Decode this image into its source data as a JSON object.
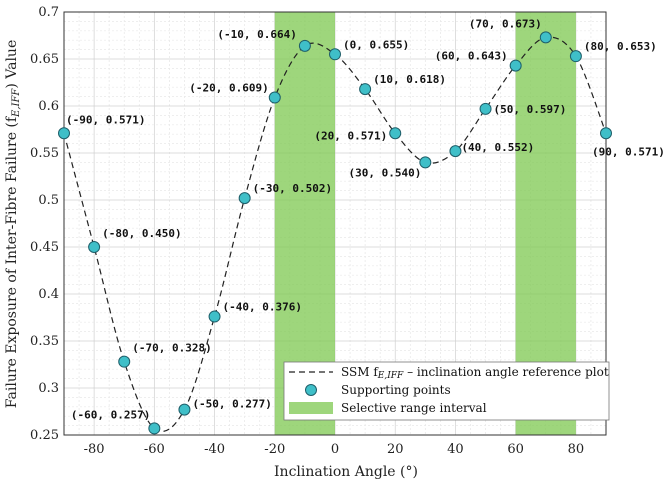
{
  "chart_data": {
    "type": "line",
    "xlabel": "Inclination Angle (°)",
    "ylabel": "Failure Exposure of Inter-Fibre Failure (f",
    "ylabel_sub": "E,IFF",
    "ylabel_end": ") Value",
    "xlim": [
      -90,
      90
    ],
    "ylim": [
      0.25,
      0.7
    ],
    "xticks": [
      -80,
      -60,
      -40,
      -20,
      0,
      20,
      40,
      60,
      80
    ],
    "yticks": [
      0.25,
      0.3,
      0.35,
      0.4,
      0.45,
      0.5,
      0.55,
      0.6,
      0.65,
      0.7
    ],
    "ytick_labels": [
      "0.25",
      "0.3",
      "0.35",
      "0.4",
      "0.45",
      "0.5",
      "0.55",
      "0.6",
      "0.65",
      "0.7"
    ],
    "grid": true,
    "shaded_intervals": [
      [
        -20,
        0
      ],
      [
        60,
        80
      ]
    ],
    "points": [
      {
        "x": -90,
        "y": 0.571,
        "label": "(-90, 0.571)"
      },
      {
        "x": -80,
        "y": 0.45,
        "label": "(-80, 0.450)"
      },
      {
        "x": -70,
        "y": 0.328,
        "label": "(-70, 0.328)"
      },
      {
        "x": -60,
        "y": 0.257,
        "label": "(-60, 0.257)"
      },
      {
        "x": -50,
        "y": 0.277,
        "label": "(-50, 0.277)"
      },
      {
        "x": -40,
        "y": 0.376,
        "label": "(-40, 0.376)"
      },
      {
        "x": -30,
        "y": 0.502,
        "label": "(-30, 0.502)"
      },
      {
        "x": -20,
        "y": 0.609,
        "label": "(-20, 0.609)"
      },
      {
        "x": -10,
        "y": 0.664,
        "label": "(-10, 0.664)"
      },
      {
        "x": 0,
        "y": 0.655,
        "label": "(0, 0.655)"
      },
      {
        "x": 10,
        "y": 0.618,
        "label": "(10, 0.618)"
      },
      {
        "x": 20,
        "y": 0.571,
        "label": "(20, 0.571)"
      },
      {
        "x": 30,
        "y": 0.54,
        "label": "(30, 0.540)"
      },
      {
        "x": 40,
        "y": 0.552,
        "label": "(40, 0.552)"
      },
      {
        "x": 50,
        "y": 0.597,
        "label": "(50, 0.597)"
      },
      {
        "x": 60,
        "y": 0.643,
        "label": "(60, 0.643)"
      },
      {
        "x": 70,
        "y": 0.673,
        "label": "(70, 0.673)"
      },
      {
        "x": 80,
        "y": 0.653,
        "label": "(80, 0.653)"
      },
      {
        "x": 90,
        "y": 0.571,
        "label": "(90, 0.571)"
      }
    ],
    "legend": {
      "position": "bottom-right",
      "entries": [
        {
          "type": "dashed-line",
          "label": "SSM f",
          "sub": "E,IFF",
          "label_end": " – inclination angle reference plot"
        },
        {
          "type": "marker",
          "label": "Supporting points"
        },
        {
          "type": "patch",
          "label": "Selective range interval"
        }
      ]
    },
    "colors": {
      "marker_fill": "#3fbfc8",
      "marker_stroke": "#1f5f6a",
      "shade": "#7ec850",
      "curve": "#222222"
    }
  }
}
